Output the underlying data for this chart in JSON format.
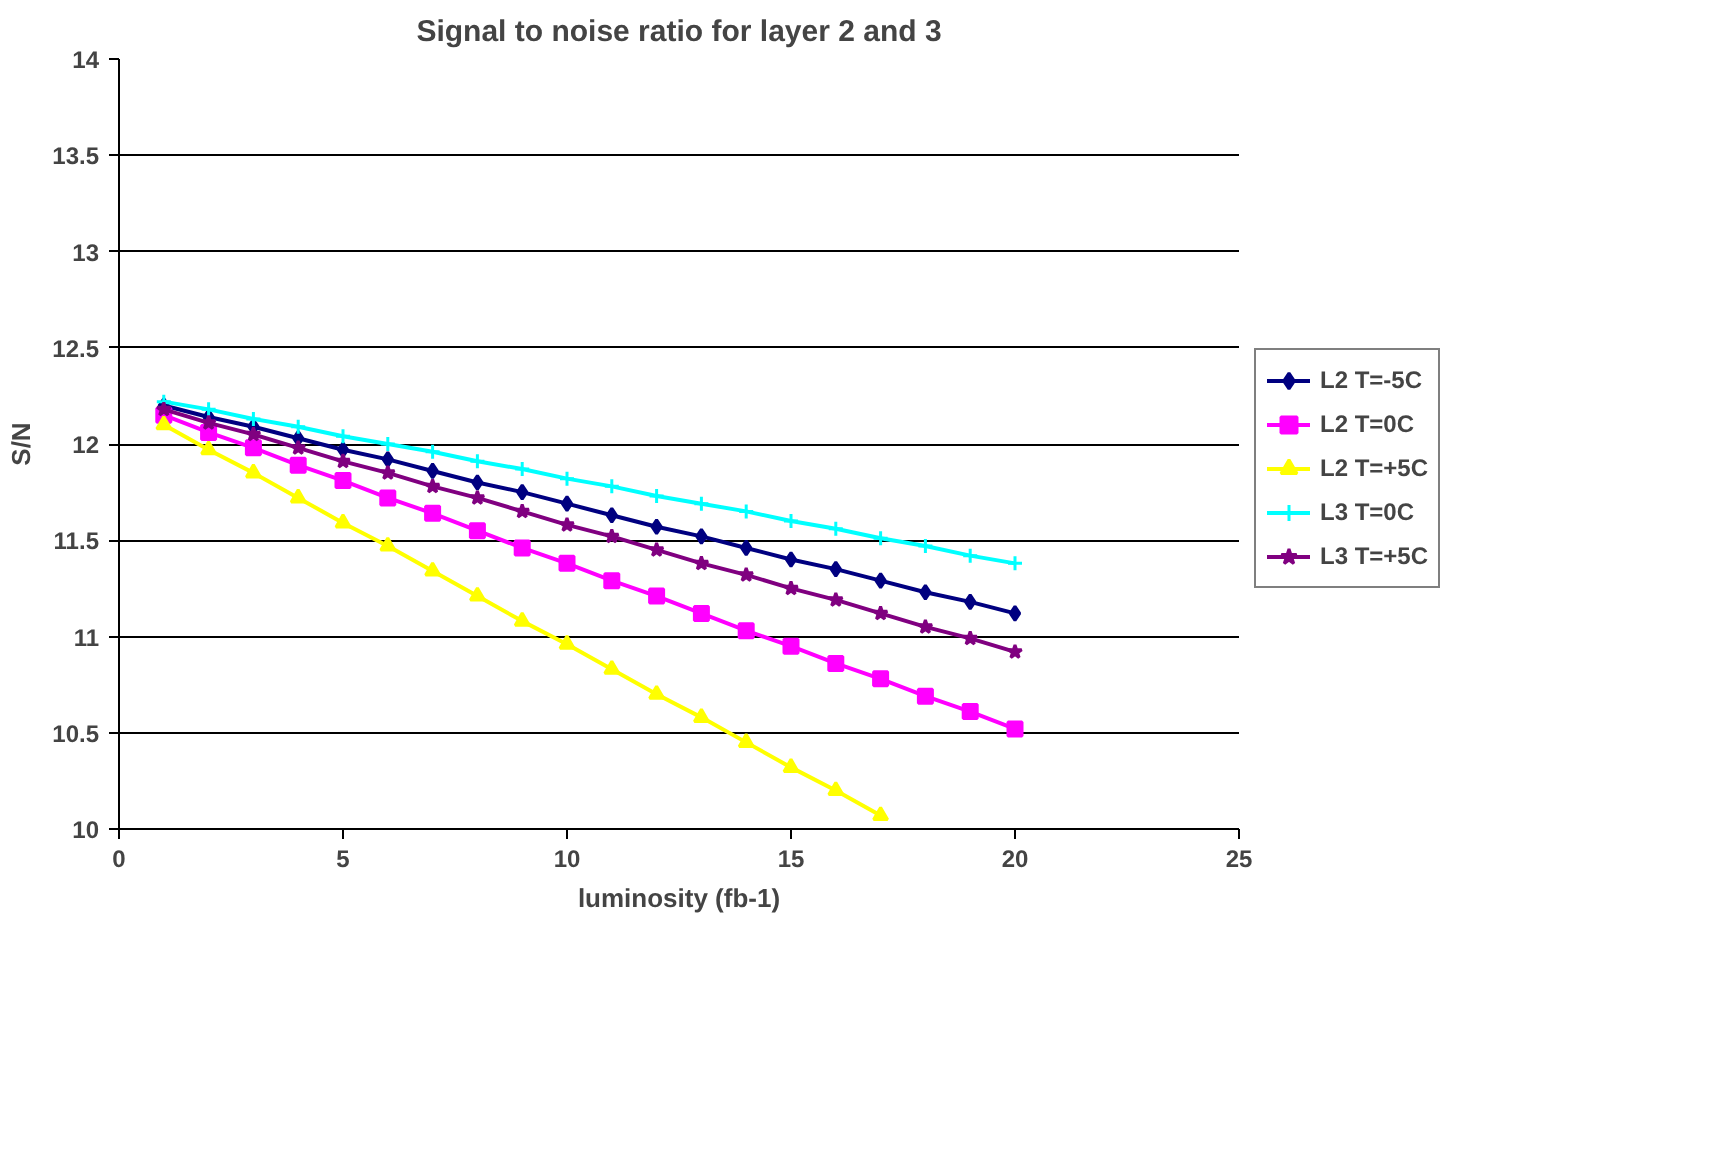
{
  "chart_data": {
    "type": "line",
    "title": "Signal to noise ratio for layer 2 and 3",
    "xlabel": "luminosity (fb-1)",
    "ylabel": "S/N",
    "x": [
      1,
      2,
      3,
      4,
      5,
      6,
      7,
      8,
      9,
      10,
      11,
      12,
      13,
      14,
      15,
      16,
      17,
      18,
      19,
      20
    ],
    "xlim": [
      0,
      25
    ],
    "xticks": [
      0,
      5,
      10,
      15,
      20,
      25
    ],
    "ylim": [
      10,
      14
    ],
    "yticks": [
      10,
      10.5,
      11,
      11.5,
      12,
      12.5,
      13,
      13.5,
      14
    ],
    "grid": "y",
    "legend": "right",
    "line_style": "solid",
    "series": [
      {
        "name": "L2 T=-5C",
        "color": "#000080",
        "marker": "diamond",
        "values": [
          12.2,
          12.14,
          12.09,
          12.03,
          11.97,
          11.92,
          11.86,
          11.8,
          11.75,
          11.69,
          11.63,
          11.57,
          11.52,
          11.46,
          11.4,
          11.35,
          11.29,
          11.23,
          11.18,
          11.12
        ]
      },
      {
        "name": "L2 T=0C",
        "color": "#ff00ff",
        "marker": "square",
        "values": [
          12.15,
          12.06,
          11.98,
          11.89,
          11.81,
          11.72,
          11.64,
          11.55,
          11.46,
          11.38,
          11.29,
          11.21,
          11.12,
          11.03,
          10.95,
          10.86,
          10.78,
          10.69,
          10.61,
          10.52
        ]
      },
      {
        "name": "L2 T=+5C",
        "color": "#ffff00",
        "marker": "triangle",
        "values": [
          12.1,
          11.97,
          11.85,
          11.72,
          11.59,
          11.47,
          11.34,
          11.21,
          11.08,
          10.96,
          10.83,
          10.7,
          10.58,
          10.45,
          10.32,
          10.2,
          10.07,
          null,
          null,
          null
        ]
      },
      {
        "name": "L3 T=0C",
        "color": "#00ffff",
        "marker": "cross",
        "values": [
          12.22,
          12.18,
          12.13,
          12.09,
          12.04,
          12.0,
          11.96,
          11.91,
          11.87,
          11.82,
          11.78,
          11.73,
          11.69,
          11.65,
          11.6,
          11.56,
          11.51,
          11.47,
          11.42,
          11.38
        ]
      },
      {
        "name": "L3 T=+5C",
        "color": "#800080",
        "marker": "star",
        "values": [
          12.18,
          12.11,
          12.05,
          11.98,
          11.91,
          11.85,
          11.78,
          11.72,
          11.65,
          11.58,
          11.52,
          11.45,
          11.38,
          11.32,
          11.25,
          11.19,
          11.12,
          11.05,
          10.99,
          10.92
        ]
      }
    ]
  }
}
